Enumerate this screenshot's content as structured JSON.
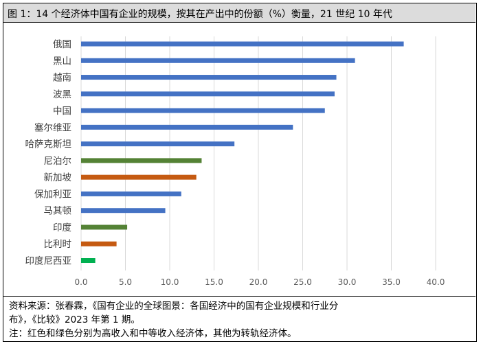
{
  "title": "图 1：14 个经济体中国有企业的规模，按其在产出中的份额（%）衡量，21 世纪 10 年代",
  "notes": {
    "source_line1": "资料来源：张春霖，《国有企业的全球图景：各国经济中的国有企业规模和行业分",
    "source_line2": "布》，《比较》2023 年第 1 期。",
    "note": "注：红色和绿色分别为高收入和中等收入经济体，其他为转轨经济体。"
  },
  "colors": {
    "transition": "#4472C4",
    "middle_income": "#548235",
    "high_income": "#C55A11",
    "bright_green": "#00B050",
    "gridline": "#d9d9d9",
    "axis_text": "#595959"
  },
  "chart_data": {
    "type": "bar",
    "orientation": "horizontal",
    "title": "图 1：14 个经济体中国有企业的规模，按其在产出中的份额（%）衡量，21 世纪 10 年代",
    "xlabel": "",
    "ylabel": "",
    "xlim": [
      0,
      40
    ],
    "x_ticks": [
      "0.0",
      "5.0",
      "10.0",
      "15.0",
      "20.0",
      "25.0",
      "30.0",
      "35.0",
      "40.0"
    ],
    "grid": true,
    "categories": [
      "俄国",
      "黑山",
      "越南",
      "波黑",
      "中国",
      "塞尔维亚",
      "哈萨克斯坦",
      "尼泊尔",
      "新加坡",
      "保加利亚",
      "马其顿",
      "印度",
      "比利时",
      "印度尼西亚"
    ],
    "values": [
      36.4,
      30.9,
      28.8,
      28.6,
      27.5,
      23.9,
      17.3,
      13.6,
      13.0,
      11.3,
      9.5,
      5.2,
      4.0,
      1.6
    ],
    "bar_colors": [
      "#4472C4",
      "#4472C4",
      "#4472C4",
      "#4472C4",
      "#4472C4",
      "#4472C4",
      "#4472C4",
      "#548235",
      "#C55A11",
      "#4472C4",
      "#4472C4",
      "#548235",
      "#C55A11",
      "#00B050"
    ]
  }
}
